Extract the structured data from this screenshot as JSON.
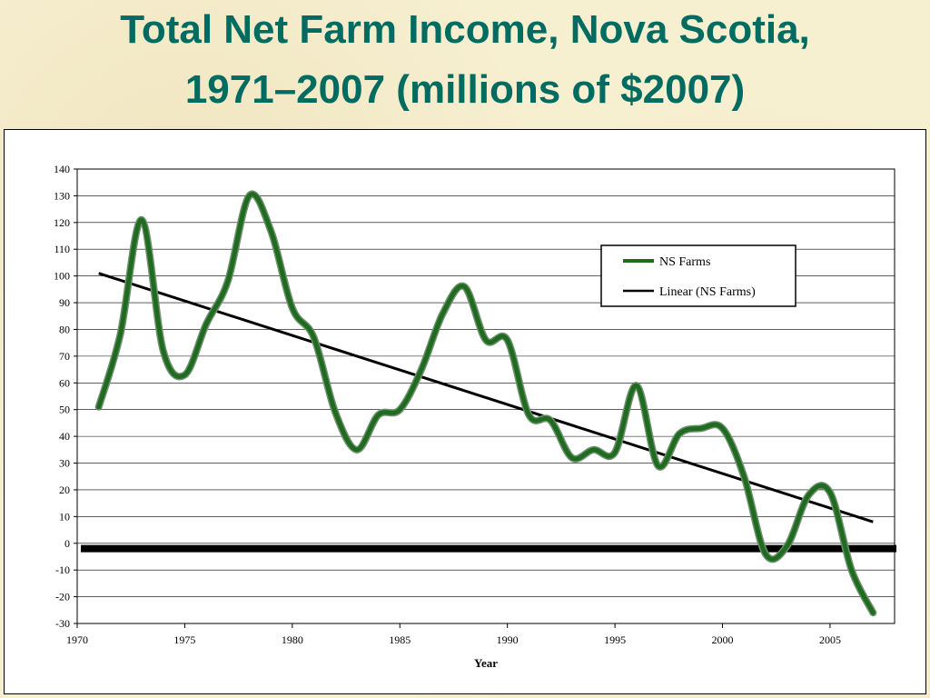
{
  "slide": {
    "title_line1": "Total Net Farm Income, Nova Scotia,",
    "title_line2": "1971–2007  (millions of $2007)"
  },
  "colors": {
    "series": "#1f6b1f",
    "trend": "#000000",
    "background": "#f6efd0"
  },
  "chart_data": {
    "type": "line",
    "title": "Total Net Farm Income, Nova Scotia, 1971–2007  (millions of $2007)",
    "xlabel": "Year",
    "ylabel": "",
    "xlim": [
      1970,
      2008
    ],
    "ylim": [
      -30,
      140
    ],
    "x_ticks": [
      1970,
      1975,
      1980,
      1985,
      1990,
      1995,
      2000,
      2005
    ],
    "y_ticks": [
      -30,
      -20,
      -10,
      0,
      10,
      20,
      30,
      40,
      50,
      60,
      70,
      80,
      90,
      100,
      110,
      120,
      130,
      140
    ],
    "grid": "horizontal",
    "legend_position": "top-right",
    "series": [
      {
        "name": "NS Farms",
        "x": [
          1971,
          1972,
          1973,
          1974,
          1975,
          1976,
          1977,
          1978,
          1979,
          1980,
          1981,
          1982,
          1983,
          1984,
          1985,
          1986,
          1987,
          1988,
          1989,
          1990,
          1991,
          1992,
          1993,
          1994,
          1995,
          1996,
          1997,
          1998,
          1999,
          2000,
          2001,
          2002,
          2003,
          2004,
          2005,
          2006,
          2007
        ],
        "values": [
          51,
          78,
          121,
          72,
          63,
          82,
          98,
          130,
          117,
          88,
          77,
          49,
          35,
          48,
          50,
          65,
          86,
          96,
          76,
          76,
          48,
          46,
          32,
          35,
          34,
          59,
          29,
          41,
          43,
          43,
          25,
          -4,
          -1,
          18,
          19,
          -10,
          -26
        ]
      },
      {
        "name": "Linear (NS Farms)",
        "trend": true,
        "x": [
          1971,
          2007
        ],
        "values": [
          101,
          8
        ]
      }
    ],
    "reference_line": {
      "y": -2
    }
  }
}
